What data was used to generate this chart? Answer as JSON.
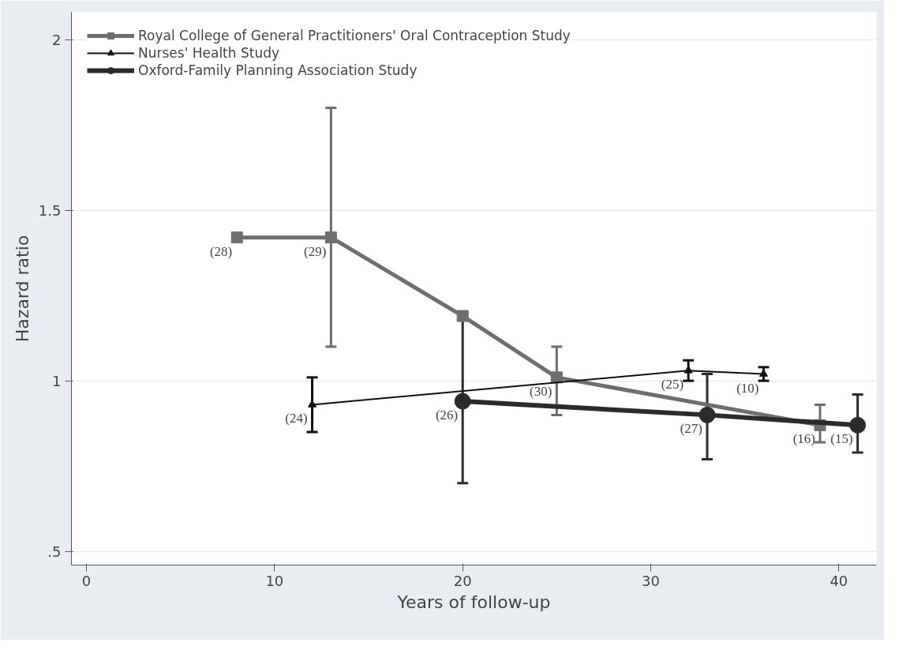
{
  "chart_data": {
    "type": "line",
    "xlabel": "Years of follow-up",
    "ylabel": "Hazard ratio",
    "xlim": [
      -0.8,
      42
    ],
    "ylim": [
      0.46,
      2.08
    ],
    "xticks": [
      0,
      10,
      20,
      30,
      40
    ],
    "yticks": [
      {
        "value": 0.5,
        "label": ".5"
      },
      1,
      1.5,
      2
    ],
    "grid": "y",
    "legend": "top left",
    "series": [
      {
        "name": "Royal College of General Practitioners' Oral Contraception Study",
        "color": "#6e6e6e",
        "marker": "square",
        "x": [
          8,
          13,
          20,
          25,
          39
        ],
        "values": [
          1.42,
          1.42,
          1.19,
          1.01,
          0.87
        ],
        "errors": [
          null,
          [
            1.1,
            1.8
          ],
          null,
          [
            0.9,
            1.1
          ],
          [
            0.82,
            0.93
          ]
        ]
      },
      {
        "name": "Nurses' Health Study",
        "color": "#111111",
        "marker": "triangle",
        "x": [
          12,
          32,
          36
        ],
        "values": [
          0.93,
          1.03,
          1.02
        ],
        "errors": [
          [
            0.85,
            1.01
          ],
          [
            1.0,
            1.06
          ],
          [
            1.0,
            1.04
          ]
        ]
      },
      {
        "name": "Oxford-Family Planning Association Study",
        "color": "#2b2b2b",
        "marker": "circle",
        "x": [
          20,
          33,
          41
        ],
        "values": [
          0.94,
          0.9,
          0.87
        ],
        "errors": [
          [
            0.7,
            1.2
          ],
          [
            0.77,
            1.02
          ],
          [
            0.79,
            0.96
          ]
        ]
      }
    ],
    "annotations": [
      {
        "text": "(28)",
        "x": 8,
        "y": 1.42
      },
      {
        "text": "(29)",
        "x": 13,
        "y": 1.42
      },
      {
        "text": "(30)",
        "x": 25,
        "y": 1.01
      },
      {
        "text": "(16)",
        "x": 39,
        "y": 0.87
      },
      {
        "text": "(24)",
        "x": 12,
        "y": 0.93
      },
      {
        "text": "(25)",
        "x": 32,
        "y": 1.03
      },
      {
        "text": "(10)",
        "x": 36,
        "y": 1.02
      },
      {
        "text": "(26)",
        "x": 20,
        "y": 0.94
      },
      {
        "text": "(27)",
        "x": 33,
        "y": 0.9
      },
      {
        "text": "(15)",
        "x": 41,
        "y": 0.87
      }
    ]
  }
}
